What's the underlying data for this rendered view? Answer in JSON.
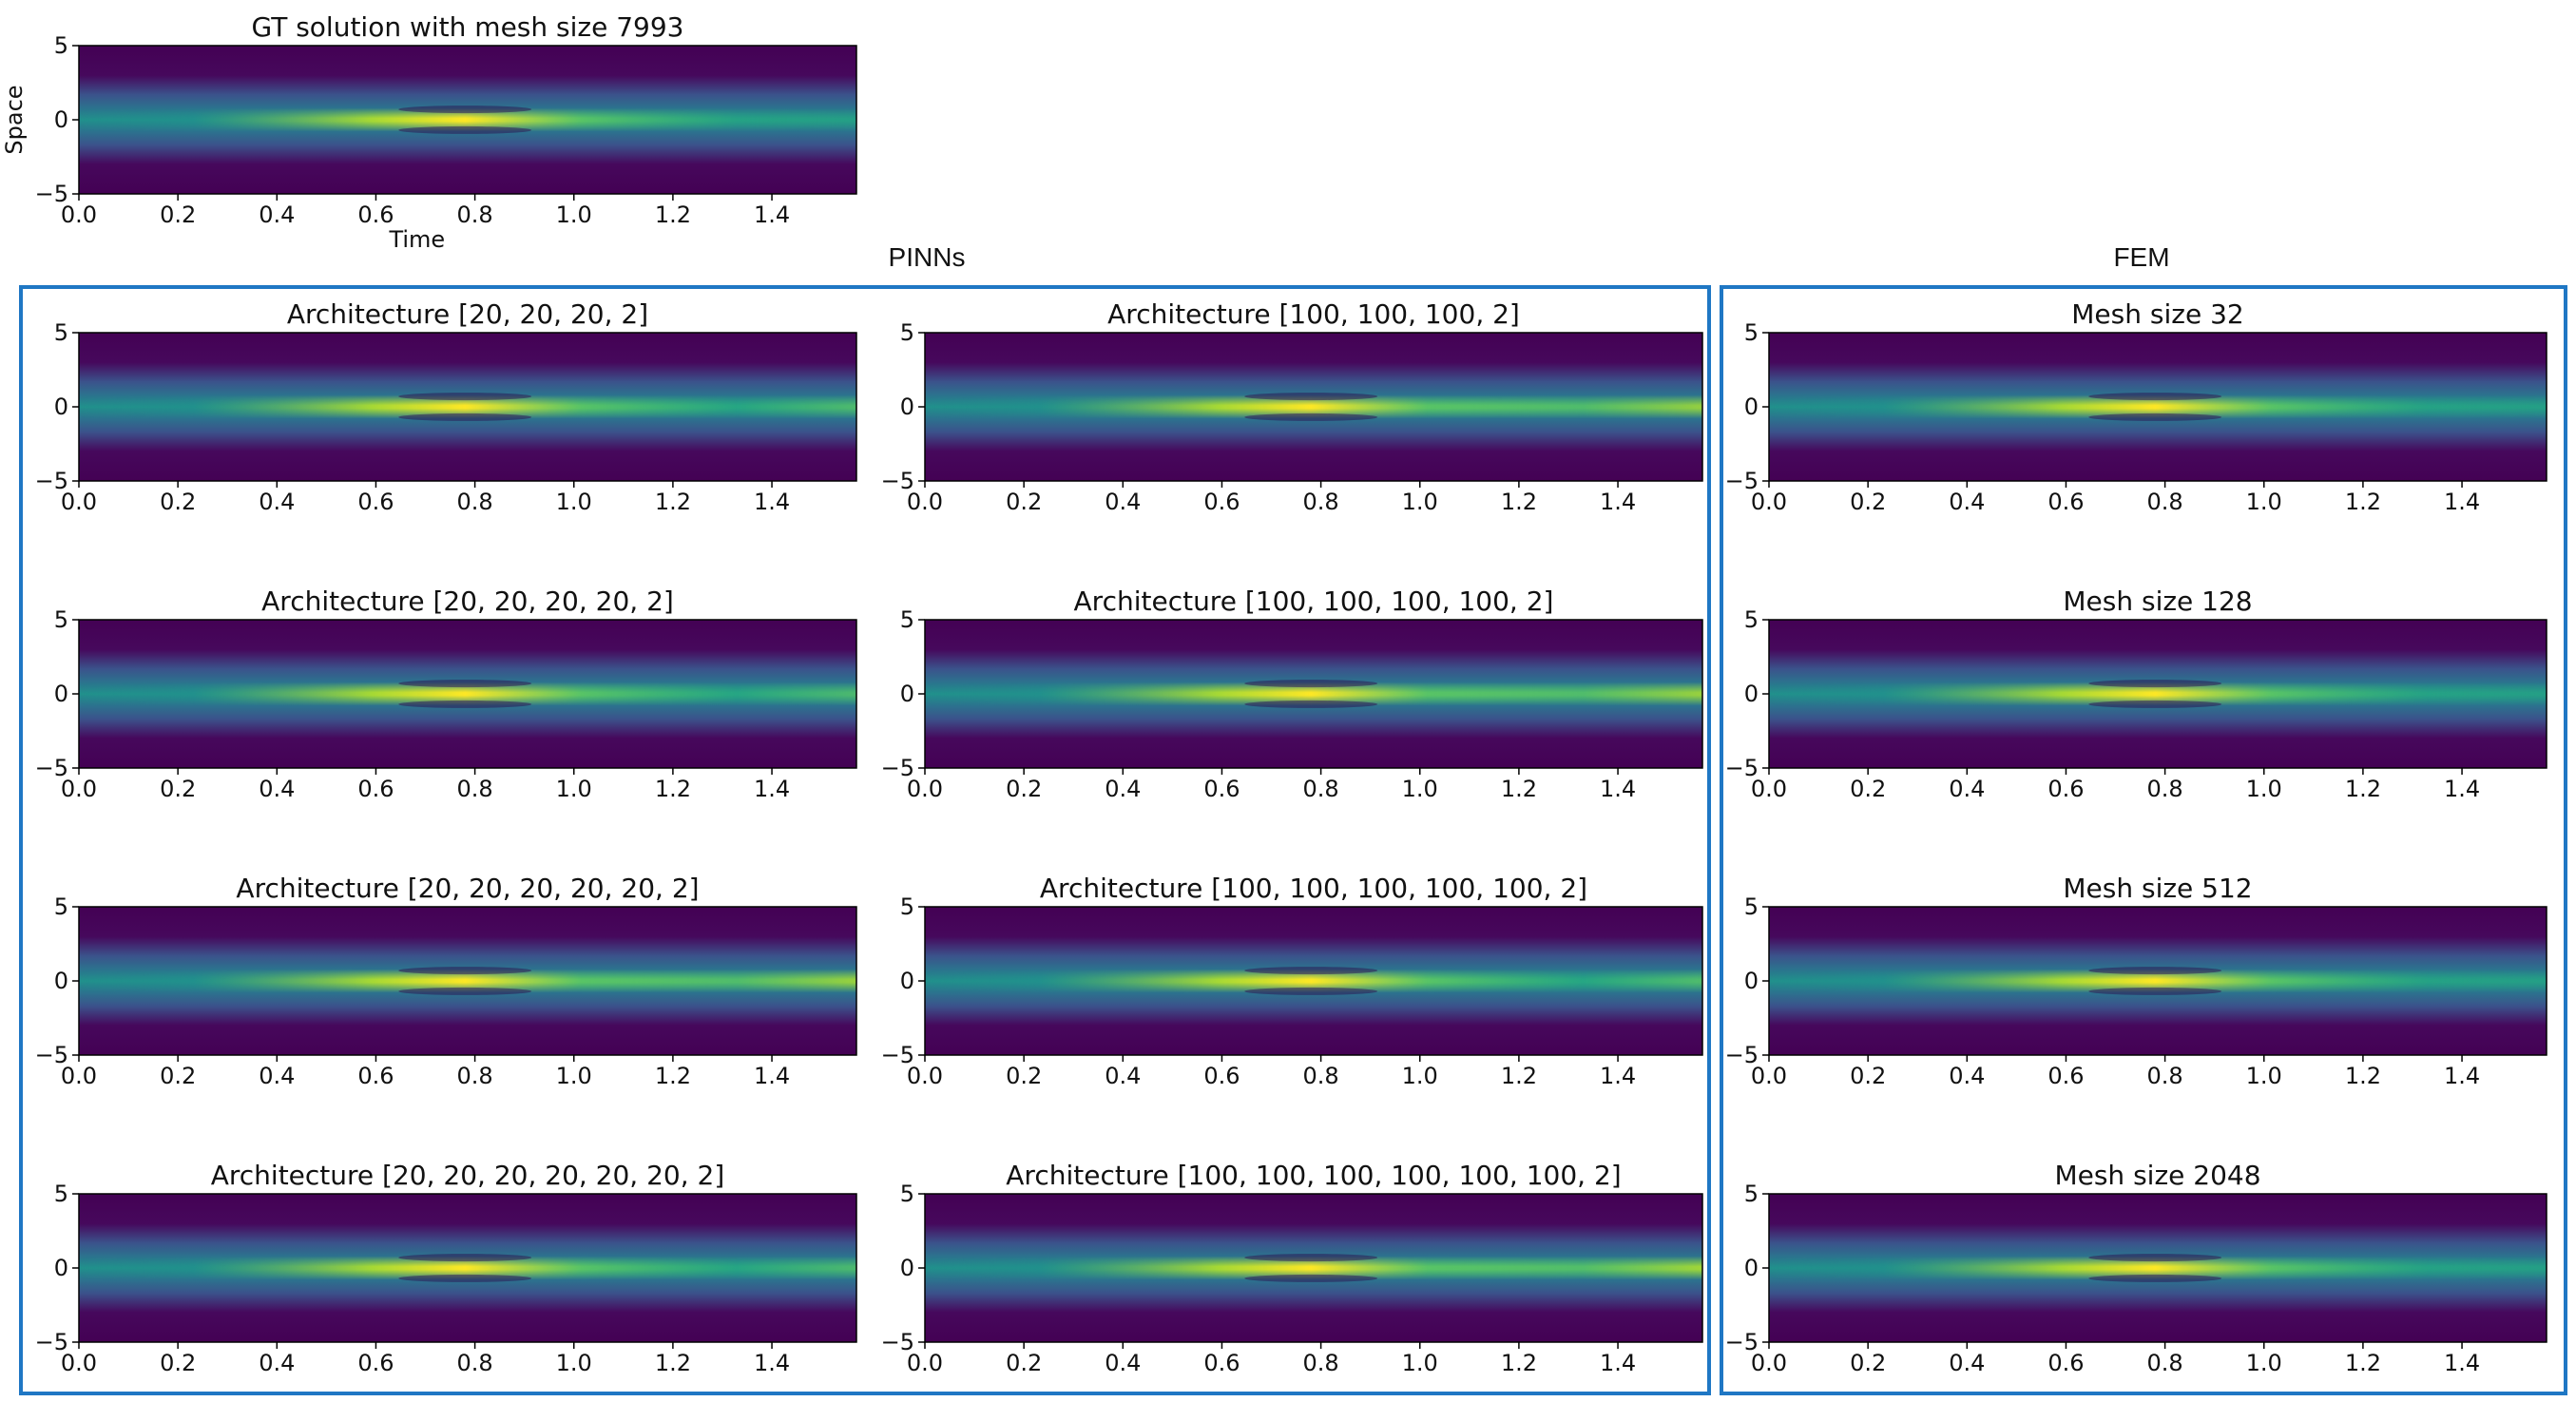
{
  "chart_data": {
    "type": "heatmap",
    "colormap": "viridis",
    "x_ticks": [
      "0.0",
      "0.2",
      "0.4",
      "0.6",
      "0.8",
      "1.0",
      "1.2",
      "1.4"
    ],
    "x_tick_values": [
      0.0,
      0.2,
      0.4,
      0.6,
      0.8,
      1.0,
      1.2,
      1.4
    ],
    "y_ticks": [
      "5",
      "0",
      "−5"
    ],
    "y_tick_values": [
      5,
      0,
      -5
    ],
    "xlim": [
      0,
      1.5708
    ],
    "ylim": [
      -5,
      5
    ],
    "group_labels": {
      "pinns": "PINNs",
      "fem": "FEM"
    },
    "gt": {
      "title": "GT solution with mesh size 7993",
      "xlabel": "Time",
      "ylabel": "Space",
      "peak_time": 0.78,
      "right_edge_intensity": 0.15
    },
    "pinns_left": [
      {
        "title": "Architecture [20, 20, 20, 2]",
        "peak_time": 0.78,
        "right_edge_intensity": 0.55
      },
      {
        "title": "Architecture [20, 20, 20, 20, 2]",
        "peak_time": 0.78,
        "right_edge_intensity": 0.5
      },
      {
        "title": "Architecture [20, 20, 20, 20, 20, 2]",
        "peak_time": 0.78,
        "right_edge_intensity": 0.75
      },
      {
        "title": "Architecture [20, 20, 20, 20, 20, 20, 2]",
        "peak_time": 0.78,
        "right_edge_intensity": 0.5
      }
    ],
    "pinns_right": [
      {
        "title": "Architecture [100, 100, 100, 2]",
        "peak_time": 0.78,
        "right_edge_intensity": 0.7
      },
      {
        "title": "Architecture [100, 100, 100, 100, 2]",
        "peak_time": 0.78,
        "right_edge_intensity": 0.75
      },
      {
        "title": "Architecture [100, 100, 100, 100, 100, 2]",
        "peak_time": 0.78,
        "right_edge_intensity": 0.6
      },
      {
        "title": "Architecture [100, 100, 100, 100, 100, 100, 2]",
        "peak_time": 0.78,
        "right_edge_intensity": 0.85
      }
    ],
    "fem": [
      {
        "title": "Mesh size 32",
        "peak_time": 0.78,
        "right_edge_intensity": 0.15
      },
      {
        "title": "Mesh size 128",
        "peak_time": 0.78,
        "right_edge_intensity": 0.15
      },
      {
        "title": "Mesh size 512",
        "peak_time": 0.78,
        "right_edge_intensity": 0.15
      },
      {
        "title": "Mesh size 2048",
        "peak_time": 0.78,
        "right_edge_intensity": 0.15
      }
    ],
    "frame_color": "#1f77c4"
  }
}
